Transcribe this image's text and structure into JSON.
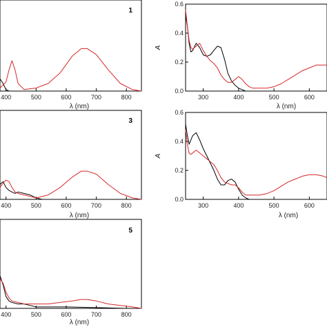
{
  "chart_data": [
    {
      "type": "line",
      "panel_label": "1",
      "xlabel": "λ (nm)",
      "ylabel": "",
      "xlim": [
        380,
        850
      ],
      "ylim": [
        0,
        0.6
      ],
      "x_ticks": [
        "400",
        "500",
        "600",
        "700",
        "800"
      ],
      "y_ticks": [],
      "series": [
        {
          "color": "#000000",
          "x": [
            380,
            390,
            400,
            410
          ],
          "values": [
            0.08,
            0.05,
            0.01,
            0.0
          ]
        },
        {
          "color": "#d62728",
          "x": [
            380,
            400,
            410,
            420,
            430,
            440,
            460,
            500,
            540,
            580,
            620,
            650,
            670,
            700,
            740,
            780,
            820,
            850
          ],
          "values": [
            0.02,
            0.06,
            0.14,
            0.2,
            0.14,
            0.05,
            0.01,
            0.02,
            0.05,
            0.12,
            0.23,
            0.28,
            0.28,
            0.24,
            0.14,
            0.05,
            0.01,
            0.0
          ]
        }
      ]
    },
    {
      "type": "line",
      "panel_label": "",
      "xlabel": "λ (nm)",
      "ylabel": "A",
      "xlim": [
        250,
        650
      ],
      "ylim": [
        0,
        0.6
      ],
      "x_ticks": [
        "300",
        "400",
        "500",
        "600"
      ],
      "y_ticks": [
        "0.0",
        "0.2",
        "0.4",
        "0.6"
      ],
      "series": [
        {
          "color": "#000000",
          "x": [
            250,
            255,
            260,
            265,
            270,
            280,
            290,
            300,
            310,
            320,
            330,
            340,
            350,
            360,
            370,
            380,
            390,
            400,
            410,
            420,
            430
          ],
          "values": [
            0.52,
            0.45,
            0.33,
            0.27,
            0.28,
            0.33,
            0.3,
            0.25,
            0.24,
            0.25,
            0.28,
            0.31,
            0.3,
            0.22,
            0.12,
            0.07,
            0.04,
            0.02,
            0.01,
            0.0,
            0.0
          ]
        },
        {
          "color": "#d62728",
          "x": [
            250,
            255,
            260,
            265,
            270,
            280,
            290,
            300,
            310,
            320,
            330,
            340,
            350,
            360,
            370,
            380,
            390,
            400,
            410,
            420,
            430,
            440,
            460,
            480,
            500,
            520,
            540,
            560,
            580,
            600,
            620,
            640,
            650
          ],
          "values": [
            0.56,
            0.45,
            0.35,
            0.3,
            0.29,
            0.31,
            0.33,
            0.28,
            0.24,
            0.21,
            0.19,
            0.16,
            0.11,
            0.08,
            0.06,
            0.06,
            0.08,
            0.1,
            0.08,
            0.05,
            0.03,
            0.02,
            0.02,
            0.02,
            0.03,
            0.05,
            0.08,
            0.11,
            0.14,
            0.16,
            0.18,
            0.18,
            0.18
          ]
        }
      ]
    },
    {
      "type": "line",
      "panel_label": "3",
      "xlabel": "λ (nm)",
      "ylabel": "",
      "xlim": [
        380,
        850
      ],
      "ylim": [
        0,
        0.6
      ],
      "x_ticks": [
        "400",
        "500",
        "600",
        "700",
        "800"
      ],
      "y_ticks": [],
      "series": [
        {
          "color": "#000000",
          "x": [
            380,
            390,
            400,
            410,
            420,
            430,
            440,
            460,
            480,
            500,
            520,
            550
          ],
          "values": [
            0.1,
            0.12,
            0.08,
            0.06,
            0.05,
            0.04,
            0.05,
            0.04,
            0.03,
            0.01,
            0.0,
            0.0
          ]
        },
        {
          "color": "#d62728",
          "x": [
            380,
            390,
            400,
            410,
            420,
            430,
            440,
            460,
            480,
            500,
            540,
            580,
            620,
            650,
            670,
            700,
            740,
            780,
            820,
            850
          ],
          "values": [
            0.08,
            0.11,
            0.13,
            0.12,
            0.08,
            0.05,
            0.04,
            0.03,
            0.02,
            0.01,
            0.03,
            0.08,
            0.15,
            0.19,
            0.19,
            0.17,
            0.1,
            0.04,
            0.01,
            0.0
          ]
        }
      ]
    },
    {
      "type": "line",
      "panel_label": "",
      "xlabel": "λ (nm)",
      "ylabel": "A",
      "xlim": [
        250,
        650
      ],
      "ylim": [
        0,
        0.6
      ],
      "x_ticks": [
        "300",
        "400",
        "500",
        "600"
      ],
      "y_ticks": [
        "0.0",
        "0.2",
        "0.4",
        "0.6"
      ],
      "series": [
        {
          "color": "#000000",
          "x": [
            250,
            255,
            260,
            265,
            270,
            280,
            290,
            300,
            310,
            320,
            330,
            340,
            350,
            360,
            370,
            380,
            390,
            400,
            410,
            420,
            430
          ],
          "values": [
            0.52,
            0.44,
            0.38,
            0.41,
            0.44,
            0.46,
            0.41,
            0.35,
            0.3,
            0.25,
            0.2,
            0.14,
            0.1,
            0.1,
            0.13,
            0.14,
            0.12,
            0.07,
            0.03,
            0.01,
            0.0
          ]
        },
        {
          "color": "#d62728",
          "x": [
            250,
            255,
            260,
            265,
            270,
            280,
            290,
            300,
            310,
            320,
            330,
            340,
            350,
            360,
            370,
            380,
            390,
            400,
            410,
            420,
            440,
            460,
            480,
            500,
            520,
            540,
            560,
            580,
            600,
            620,
            640,
            650
          ],
          "values": [
            0.48,
            0.38,
            0.32,
            0.31,
            0.32,
            0.34,
            0.32,
            0.3,
            0.28,
            0.26,
            0.24,
            0.2,
            0.15,
            0.12,
            0.11,
            0.1,
            0.1,
            0.08,
            0.05,
            0.03,
            0.03,
            0.03,
            0.04,
            0.06,
            0.09,
            0.12,
            0.14,
            0.16,
            0.17,
            0.17,
            0.16,
            0.15
          ]
        }
      ]
    },
    {
      "type": "line",
      "panel_label": "5",
      "xlabel": "λ (nm)",
      "ylabel": "",
      "xlim": [
        380,
        850
      ],
      "ylim": [
        0,
        0.6
      ],
      "x_ticks": [
        "400",
        "500",
        "600",
        "700",
        "800"
      ],
      "y_ticks": [],
      "series": [
        {
          "color": "#000000",
          "x": [
            380,
            390,
            400,
            410,
            420,
            440,
            460,
            480,
            500,
            520,
            560,
            600,
            700,
            800,
            850
          ],
          "values": [
            0.22,
            0.16,
            0.08,
            0.05,
            0.04,
            0.03,
            0.03,
            0.02,
            0.01,
            0.01,
            0.01,
            0.01,
            0.005,
            0.0,
            0.0
          ]
        },
        {
          "color": "#d62728",
          "x": [
            380,
            390,
            400,
            410,
            420,
            440,
            460,
            480,
            500,
            540,
            580,
            620,
            650,
            670,
            700,
            740,
            780,
            820,
            850
          ],
          "values": [
            0.2,
            0.17,
            0.11,
            0.07,
            0.05,
            0.04,
            0.03,
            0.03,
            0.03,
            0.03,
            0.04,
            0.05,
            0.06,
            0.06,
            0.05,
            0.03,
            0.02,
            0.01,
            0.0
          ]
        }
      ]
    }
  ]
}
